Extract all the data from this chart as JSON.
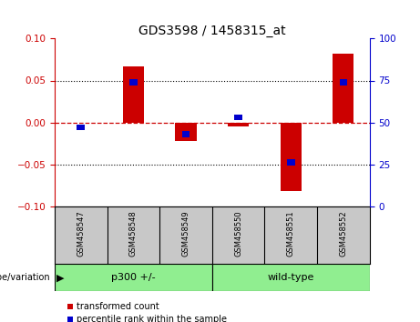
{
  "title": "GDS3598 / 1458315_at",
  "samples": [
    "GSM458547",
    "GSM458548",
    "GSM458549",
    "GSM458550",
    "GSM458551",
    "GSM458552"
  ],
  "red_values": [
    0.0,
    0.067,
    -0.022,
    -0.005,
    -0.082,
    0.082
  ],
  "blue_values_pct": [
    47,
    74,
    43,
    53,
    26,
    74
  ],
  "ylim_left": [
    -0.1,
    0.1
  ],
  "ylim_right": [
    0,
    100
  ],
  "yticks_left": [
    -0.1,
    -0.05,
    0,
    0.05,
    0.1
  ],
  "yticks_right": [
    0,
    25,
    50,
    75,
    100
  ],
  "left_color": "#CC0000",
  "right_color": "#0000CC",
  "bar_red_color": "#CC0000",
  "bar_blue_color": "#0000CC",
  "hline_color": "#CC0000",
  "dotted_color": "#000000",
  "bg_color": "#FFFFFF",
  "plot_bg": "#FFFFFF",
  "sample_bg": "#C8C8C8",
  "group_color": "#90EE90",
  "legend_red": "transformed count",
  "legend_blue": "percentile rank within the sample",
  "genotype_label": "genotype/variation",
  "group_labels": [
    "p300 +/-",
    "wild-type"
  ],
  "group_starts": [
    0,
    3
  ],
  "group_ends": [
    3,
    6
  ]
}
